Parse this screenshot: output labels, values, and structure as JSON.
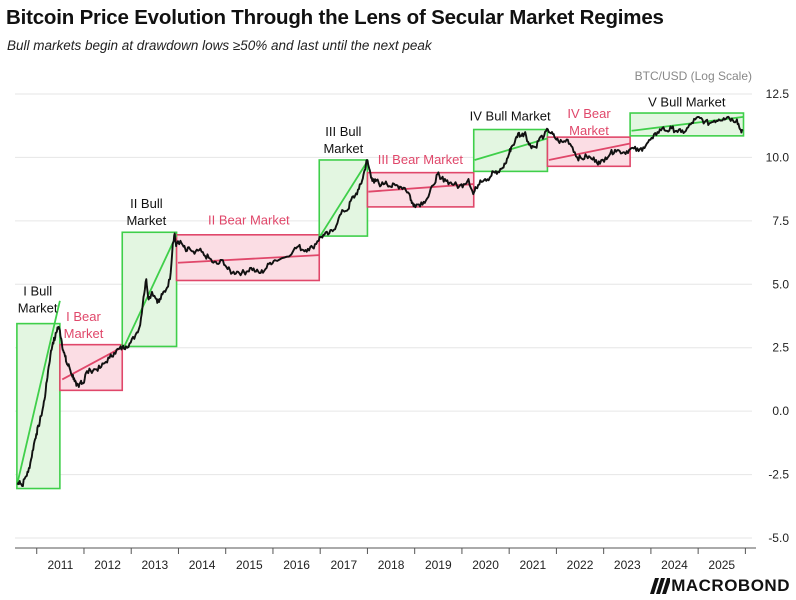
{
  "header": {
    "title": "Bitcoin Price Evolution Through the Lens of Secular Market Regimes",
    "subtitle": "Bull markets begin at drawdown lows ≥50% and last until the next peak"
  },
  "branding": {
    "logo_text": "MACROBOND"
  },
  "colors": {
    "bull_fill": "#e3f6e1",
    "bull_stroke": "#3fcf4a",
    "bear_fill": "#fbdde4",
    "bear_stroke": "#e0476a",
    "bull_label": "#111111",
    "bear_label": "#e0476a",
    "price_line": "#111111"
  },
  "chart_data": {
    "type": "line",
    "title": "Bitcoin Price Evolution Through the Lens of Secular Market Regimes",
    "ylabel": "BTC/USD (Log Scale)",
    "xlabel": "",
    "ylim": [
      -5.0,
      12.5
    ],
    "yticks": [
      "12.5",
      "10.0",
      "7.5",
      "5.0",
      "2.5",
      "0.0",
      "-2.5",
      "-5.0"
    ],
    "ytick_values": [
      12.5,
      10.0,
      7.5,
      5.0,
      2.5,
      0.0,
      -2.5,
      -5.0
    ],
    "xlim": [
      2010.5,
      2026.1
    ],
    "xticks": [
      "2011",
      "2012",
      "2013",
      "2014",
      "2015",
      "2016",
      "2017",
      "2018",
      "2019",
      "2020",
      "2021",
      "2022",
      "2023",
      "2024",
      "2025"
    ],
    "xtick_values": [
      2011,
      2012,
      2013,
      2014,
      2015,
      2016,
      2017,
      2018,
      2019,
      2020,
      2021,
      2022,
      2023,
      2024,
      2025
    ],
    "regimes": [
      {
        "label_lines": [
          "I Bull",
          "Market"
        ],
        "kind": "bull",
        "x0": 2010.54,
        "x1": 2011.45,
        "y0": -3.05,
        "y1": 3.45,
        "trend": [
          [
            2010.55,
            -2.85
          ],
          [
            2011.45,
            4.35
          ]
        ]
      },
      {
        "label_lines": [
          "I Bear",
          "Market"
        ],
        "kind": "bear",
        "x0": 2011.45,
        "x1": 2012.77,
        "y0": 0.82,
        "y1": 2.62,
        "trend": [
          [
            2011.5,
            1.25
          ],
          [
            2012.77,
            2.52
          ]
        ]
      },
      {
        "label_lines": [
          "II Bull",
          "Market"
        ],
        "kind": "bull",
        "x0": 2012.77,
        "x1": 2013.92,
        "y0": 2.55,
        "y1": 7.05,
        "trend": [
          [
            2012.8,
            2.5
          ],
          [
            2013.92,
            6.95
          ]
        ]
      },
      {
        "label_lines": [
          "II Bear Market"
        ],
        "kind": "bear",
        "x0": 2013.92,
        "x1": 2016.94,
        "y0": 5.15,
        "y1": 6.95,
        "trend": [
          [
            2013.95,
            5.85
          ],
          [
            2016.94,
            6.15
          ]
        ]
      },
      {
        "label_lines": [
          "III Bull",
          "Market"
        ],
        "kind": "bull",
        "x0": 2016.94,
        "x1": 2017.96,
        "y0": 6.9,
        "y1": 9.9,
        "trend": [
          [
            2016.96,
            6.9
          ],
          [
            2017.96,
            9.85
          ]
        ]
      },
      {
        "label_lines": [
          "III Bear Market"
        ],
        "kind": "bear",
        "x0": 2017.96,
        "x1": 2020.21,
        "y0": 8.05,
        "y1": 9.4,
        "trend": [
          [
            2017.98,
            8.65
          ],
          [
            2020.21,
            8.95
          ]
        ]
      },
      {
        "label_lines": [
          "IV Bull Market"
        ],
        "kind": "bull",
        "x0": 2020.21,
        "x1": 2021.77,
        "y0": 9.45,
        "y1": 11.1,
        "trend": [
          [
            2020.23,
            9.9
          ],
          [
            2021.77,
            10.75
          ]
        ]
      },
      {
        "label_lines": [
          "IV Bear",
          "Market"
        ],
        "kind": "bear",
        "x0": 2021.77,
        "x1": 2023.52,
        "y0": 9.65,
        "y1": 10.8,
        "trend": [
          [
            2021.8,
            9.9
          ],
          [
            2023.52,
            10.55
          ]
        ]
      },
      {
        "label_lines": [
          "V Bull Market"
        ],
        "kind": "bull",
        "x0": 2023.52,
        "x1": 2025.92,
        "y0": 10.85,
        "y1": 11.75,
        "trend": [
          [
            2023.55,
            11.05
          ],
          [
            2025.92,
            11.6
          ]
        ]
      }
    ],
    "series": [
      {
        "name": "BTC/USD",
        "points": [
          [
            2010.55,
            -2.9
          ],
          [
            2010.6,
            -2.75
          ],
          [
            2010.65,
            -2.95
          ],
          [
            2010.72,
            -2.6
          ],
          [
            2010.78,
            -2.4
          ],
          [
            2010.84,
            -1.9
          ],
          [
            2010.9,
            -1.3
          ],
          [
            2010.95,
            -0.9
          ],
          [
            2011.0,
            -0.6
          ],
          [
            2011.05,
            -0.2
          ],
          [
            2011.1,
            0.2
          ],
          [
            2011.15,
            0.8
          ],
          [
            2011.2,
            1.6
          ],
          [
            2011.25,
            2.2
          ],
          [
            2011.3,
            2.7
          ],
          [
            2011.35,
            2.9
          ],
          [
            2011.4,
            3.3
          ],
          [
            2011.44,
            3.25
          ],
          [
            2011.48,
            2.85
          ],
          [
            2011.52,
            2.4
          ],
          [
            2011.56,
            2.15
          ],
          [
            2011.6,
            1.85
          ],
          [
            2011.65,
            1.75
          ],
          [
            2011.7,
            1.45
          ],
          [
            2011.75,
            1.3
          ],
          [
            2011.8,
            1.0
          ],
          [
            2011.85,
            0.95
          ],
          [
            2011.9,
            1.2
          ],
          [
            2011.95,
            1.1
          ],
          [
            2012.0,
            1.5
          ],
          [
            2012.1,
            1.6
          ],
          [
            2012.2,
            1.65
          ],
          [
            2012.3,
            1.7
          ],
          [
            2012.4,
            1.9
          ],
          [
            2012.5,
            2.1
          ],
          [
            2012.6,
            2.3
          ],
          [
            2012.7,
            2.45
          ],
          [
            2012.77,
            2.5
          ],
          [
            2012.85,
            2.55
          ],
          [
            2012.95,
            2.7
          ],
          [
            2013.05,
            3.0
          ],
          [
            2013.15,
            3.4
          ],
          [
            2013.22,
            4.5
          ],
          [
            2013.28,
            5.2
          ],
          [
            2013.33,
            4.4
          ],
          [
            2013.4,
            4.7
          ],
          [
            2013.5,
            4.4
          ],
          [
            2013.55,
            4.3
          ],
          [
            2013.62,
            4.6
          ],
          [
            2013.7,
            4.8
          ],
          [
            2013.78,
            5.2
          ],
          [
            2013.84,
            6.6
          ],
          [
            2013.88,
            7.0
          ],
          [
            2013.91,
            6.5
          ],
          [
            2013.95,
            6.7
          ],
          [
            2014.05,
            6.55
          ],
          [
            2014.12,
            6.3
          ],
          [
            2014.2,
            6.4
          ],
          [
            2014.3,
            6.2
          ],
          [
            2014.4,
            6.35
          ],
          [
            2014.5,
            6.15
          ],
          [
            2014.6,
            6.05
          ],
          [
            2014.7,
            5.85
          ],
          [
            2014.8,
            5.8
          ],
          [
            2014.9,
            5.95
          ],
          [
            2015.0,
            5.6
          ],
          [
            2015.1,
            5.45
          ],
          [
            2015.2,
            5.5
          ],
          [
            2015.3,
            5.45
          ],
          [
            2015.4,
            5.5
          ],
          [
            2015.5,
            5.65
          ],
          [
            2015.6,
            5.5
          ],
          [
            2015.7,
            5.45
          ],
          [
            2015.8,
            5.6
          ],
          [
            2015.9,
            5.85
          ],
          [
            2016.0,
            5.95
          ],
          [
            2016.2,
            6.05
          ],
          [
            2016.4,
            6.35
          ],
          [
            2016.5,
            6.5
          ],
          [
            2016.6,
            6.35
          ],
          [
            2016.7,
            6.4
          ],
          [
            2016.8,
            6.45
          ],
          [
            2016.9,
            6.7
          ],
          [
            2016.96,
            6.85
          ],
          [
            2017.05,
            6.95
          ],
          [
            2017.15,
            7.0
          ],
          [
            2017.25,
            7.15
          ],
          [
            2017.35,
            7.6
          ],
          [
            2017.45,
            7.9
          ],
          [
            2017.55,
            7.95
          ],
          [
            2017.62,
            8.35
          ],
          [
            2017.7,
            8.5
          ],
          [
            2017.78,
            8.75
          ],
          [
            2017.85,
            9.1
          ],
          [
            2017.9,
            9.5
          ],
          [
            2017.95,
            9.9
          ],
          [
            2018.0,
            9.55
          ],
          [
            2018.05,
            9.2
          ],
          [
            2018.1,
            9.0
          ],
          [
            2018.15,
            9.1
          ],
          [
            2018.25,
            8.9
          ],
          [
            2018.35,
            9.05
          ],
          [
            2018.45,
            8.85
          ],
          [
            2018.55,
            8.9
          ],
          [
            2018.65,
            8.85
          ],
          [
            2018.75,
            8.8
          ],
          [
            2018.85,
            8.55
          ],
          [
            2018.9,
            8.2
          ],
          [
            2018.95,
            8.15
          ],
          [
            2019.05,
            8.15
          ],
          [
            2019.15,
            8.25
          ],
          [
            2019.25,
            8.45
          ],
          [
            2019.35,
            8.9
          ],
          [
            2019.45,
            9.35
          ],
          [
            2019.5,
            9.15
          ],
          [
            2019.6,
            9.15
          ],
          [
            2019.7,
            9.0
          ],
          [
            2019.8,
            8.95
          ],
          [
            2019.9,
            8.85
          ],
          [
            2020.0,
            8.95
          ],
          [
            2020.1,
            9.15
          ],
          [
            2020.2,
            8.55
          ],
          [
            2020.26,
            8.8
          ],
          [
            2020.35,
            9.1
          ],
          [
            2020.45,
            9.15
          ],
          [
            2020.55,
            9.2
          ],
          [
            2020.62,
            9.45
          ],
          [
            2020.7,
            9.35
          ],
          [
            2020.8,
            9.55
          ],
          [
            2020.88,
            9.75
          ],
          [
            2020.95,
            10.1
          ],
          [
            2021.0,
            10.4
          ],
          [
            2021.08,
            10.6
          ],
          [
            2021.15,
            10.95
          ],
          [
            2021.22,
            10.85
          ],
          [
            2021.3,
            11.0
          ],
          [
            2021.38,
            10.5
          ],
          [
            2021.45,
            10.45
          ],
          [
            2021.52,
            10.4
          ],
          [
            2021.6,
            10.75
          ],
          [
            2021.7,
            10.85
          ],
          [
            2021.78,
            11.1
          ],
          [
            2021.85,
            10.95
          ],
          [
            2021.92,
            10.8
          ],
          [
            2022.0,
            10.65
          ],
          [
            2022.1,
            10.6
          ],
          [
            2022.2,
            10.7
          ],
          [
            2022.3,
            10.4
          ],
          [
            2022.4,
            10.0
          ],
          [
            2022.5,
            9.95
          ],
          [
            2022.6,
            10.05
          ],
          [
            2022.7,
            9.95
          ],
          [
            2022.8,
            9.9
          ],
          [
            2022.88,
            9.75
          ],
          [
            2023.0,
            10.0
          ],
          [
            2023.1,
            10.15
          ],
          [
            2023.2,
            10.3
          ],
          [
            2023.3,
            10.25
          ],
          [
            2023.4,
            10.2
          ],
          [
            2023.5,
            10.3
          ],
          [
            2023.6,
            10.35
          ],
          [
            2023.7,
            10.25
          ],
          [
            2023.8,
            10.4
          ],
          [
            2023.9,
            10.6
          ],
          [
            2024.0,
            10.75
          ],
          [
            2024.1,
            11.0
          ],
          [
            2024.2,
            11.15
          ],
          [
            2024.3,
            11.05
          ],
          [
            2024.4,
            11.15
          ],
          [
            2024.5,
            11.05
          ],
          [
            2024.6,
            11.0
          ],
          [
            2024.7,
            11.05
          ],
          [
            2024.8,
            11.3
          ],
          [
            2024.9,
            11.5
          ],
          [
            2025.0,
            11.55
          ],
          [
            2025.1,
            11.4
          ],
          [
            2025.2,
            11.35
          ],
          [
            2025.3,
            11.45
          ],
          [
            2025.4,
            11.5
          ],
          [
            2025.5,
            11.55
          ],
          [
            2025.6,
            11.6
          ],
          [
            2025.7,
            11.45
          ],
          [
            2025.78,
            11.5
          ],
          [
            2025.85,
            11.1
          ],
          [
            2025.9,
            11.05
          ]
        ]
      }
    ]
  }
}
